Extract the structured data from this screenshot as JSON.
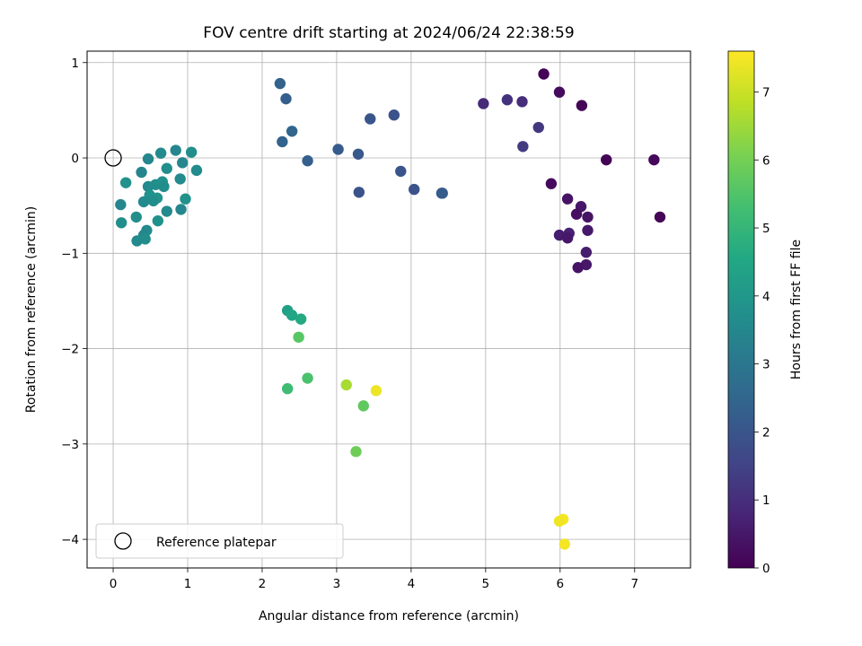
{
  "chart_data": {
    "type": "scatter",
    "title": "FOV centre drift starting at 2024/06/24 22:38:59",
    "xlabel": "Angular distance from reference (arcmin)",
    "ylabel": "Rotation from reference (arcmin)",
    "xlim": [
      -0.35,
      7.75
    ],
    "ylim": [
      -4.3,
      1.12
    ],
    "xticks": [
      0,
      1,
      2,
      3,
      4,
      5,
      6,
      7
    ],
    "yticks": [
      -4,
      -3,
      -2,
      -1,
      0,
      1
    ],
    "grid": true,
    "legend": {
      "placement": "lower-left",
      "entries": [
        "Reference platepar"
      ]
    },
    "reference_point": {
      "x": 0,
      "y": 0
    },
    "colorbar": {
      "label": "Hours from first FF file",
      "colormap": "viridis",
      "range": [
        0,
        7.6
      ],
      "ticks": [
        0,
        1,
        2,
        3,
        4,
        5,
        6,
        7
      ]
    },
    "points": [
      {
        "x": 5.78,
        "y": 0.88,
        "c": 0.05
      },
      {
        "x": 5.99,
        "y": 0.69,
        "c": 0.2
      },
      {
        "x": 6.29,
        "y": 0.55,
        "c": 0.1
      },
      {
        "x": 6.62,
        "y": -0.02,
        "c": 0.05
      },
      {
        "x": 7.26,
        "y": -0.02,
        "c": 0.15
      },
      {
        "x": 7.34,
        "y": -0.62,
        "c": 0.1
      },
      {
        "x": 5.88,
        "y": -0.27,
        "c": 0.2
      },
      {
        "x": 6.1,
        "y": -0.43,
        "c": 0.4
      },
      {
        "x": 6.28,
        "y": -0.51,
        "c": 0.5
      },
      {
        "x": 6.22,
        "y": -0.59,
        "c": 0.3
      },
      {
        "x": 6.37,
        "y": -0.62,
        "c": 0.4
      },
      {
        "x": 6.37,
        "y": -0.76,
        "c": 0.5
      },
      {
        "x": 5.99,
        "y": -0.81,
        "c": 0.6
      },
      {
        "x": 6.12,
        "y": -0.79,
        "c": 0.7
      },
      {
        "x": 6.1,
        "y": -0.84,
        "c": 0.5
      },
      {
        "x": 6.35,
        "y": -0.99,
        "c": 0.6
      },
      {
        "x": 6.35,
        "y": -1.12,
        "c": 0.5
      },
      {
        "x": 6.24,
        "y": -1.15,
        "c": 0.4
      },
      {
        "x": 5.29,
        "y": 0.61,
        "c": 1.1
      },
      {
        "x": 5.49,
        "y": 0.59,
        "c": 1.0
      },
      {
        "x": 4.97,
        "y": 0.57,
        "c": 0.9
      },
      {
        "x": 5.71,
        "y": 0.32,
        "c": 1.2
      },
      {
        "x": 5.5,
        "y": 0.12,
        "c": 1.3
      },
      {
        "x": 2.24,
        "y": 0.78,
        "c": 2.4
      },
      {
        "x": 2.32,
        "y": 0.62,
        "c": 2.3
      },
      {
        "x": 2.4,
        "y": 0.28,
        "c": 2.5
      },
      {
        "x": 2.27,
        "y": 0.17,
        "c": 2.4
      },
      {
        "x": 2.61,
        "y": -0.03,
        "c": 2.3
      },
      {
        "x": 3.02,
        "y": 0.09,
        "c": 2.2
      },
      {
        "x": 3.29,
        "y": 0.04,
        "c": 2.1
      },
      {
        "x": 3.45,
        "y": 0.41,
        "c": 2.0
      },
      {
        "x": 3.77,
        "y": 0.45,
        "c": 1.9
      },
      {
        "x": 3.86,
        "y": -0.14,
        "c": 2.0
      },
      {
        "x": 3.3,
        "y": -0.36,
        "c": 1.9
      },
      {
        "x": 4.04,
        "y": -0.33,
        "c": 1.9
      },
      {
        "x": 4.41,
        "y": -0.37,
        "c": 2.1
      },
      {
        "x": 4.42,
        "y": -0.37,
        "c": 2.2
      },
      {
        "x": 0.47,
        "y": -0.01,
        "c": 3.5
      },
      {
        "x": 0.64,
        "y": 0.05,
        "c": 3.6
      },
      {
        "x": 0.84,
        "y": 0.08,
        "c": 3.5
      },
      {
        "x": 1.05,
        "y": 0.06,
        "c": 3.7
      },
      {
        "x": 0.38,
        "y": -0.15,
        "c": 3.4
      },
      {
        "x": 0.72,
        "y": -0.11,
        "c": 3.7
      },
      {
        "x": 0.93,
        "y": -0.05,
        "c": 3.5
      },
      {
        "x": 1.12,
        "y": -0.13,
        "c": 3.6
      },
      {
        "x": 0.17,
        "y": -0.26,
        "c": 3.8
      },
      {
        "x": 0.47,
        "y": -0.3,
        "c": 3.6
      },
      {
        "x": 0.57,
        "y": -0.28,
        "c": 3.7
      },
      {
        "x": 0.66,
        "y": -0.25,
        "c": 3.8
      },
      {
        "x": 0.68,
        "y": -0.3,
        "c": 3.7
      },
      {
        "x": 0.9,
        "y": -0.22,
        "c": 3.6
      },
      {
        "x": 0.49,
        "y": -0.39,
        "c": 3.8
      },
      {
        "x": 0.59,
        "y": -0.42,
        "c": 3.9
      },
      {
        "x": 0.41,
        "y": -0.46,
        "c": 3.6
      },
      {
        "x": 0.54,
        "y": -0.45,
        "c": 3.7
      },
      {
        "x": 0.1,
        "y": -0.49,
        "c": 3.5
      },
      {
        "x": 0.97,
        "y": -0.43,
        "c": 3.8
      },
      {
        "x": 0.72,
        "y": -0.56,
        "c": 3.6
      },
      {
        "x": 0.91,
        "y": -0.54,
        "c": 3.5
      },
      {
        "x": 0.31,
        "y": -0.62,
        "c": 3.7
      },
      {
        "x": 0.6,
        "y": -0.66,
        "c": 3.8
      },
      {
        "x": 0.11,
        "y": -0.68,
        "c": 3.7
      },
      {
        "x": 0.45,
        "y": -0.76,
        "c": 3.6
      },
      {
        "x": 0.41,
        "y": -0.81,
        "c": 3.5
      },
      {
        "x": 0.43,
        "y": -0.85,
        "c": 3.7
      },
      {
        "x": 0.32,
        "y": -0.87,
        "c": 3.6
      },
      {
        "x": 2.34,
        "y": -1.6,
        "c": 4.3
      },
      {
        "x": 2.4,
        "y": -1.65,
        "c": 4.5
      },
      {
        "x": 2.52,
        "y": -1.69,
        "c": 4.6
      },
      {
        "x": 2.49,
        "y": -1.88,
        "c": 5.6
      },
      {
        "x": 2.61,
        "y": -2.31,
        "c": 5.4
      },
      {
        "x": 2.34,
        "y": -2.42,
        "c": 5.2
      },
      {
        "x": 3.13,
        "y": -2.38,
        "c": 6.6
      },
      {
        "x": 3.53,
        "y": -2.44,
        "c": 7.4
      },
      {
        "x": 3.36,
        "y": -2.6,
        "c": 5.7
      },
      {
        "x": 3.26,
        "y": -3.08,
        "c": 5.9
      },
      {
        "x": 6.04,
        "y": -3.79,
        "c": 7.5
      },
      {
        "x": 5.99,
        "y": -3.81,
        "c": 7.45
      },
      {
        "x": 6.06,
        "y": -4.05,
        "c": 7.5
      }
    ]
  }
}
